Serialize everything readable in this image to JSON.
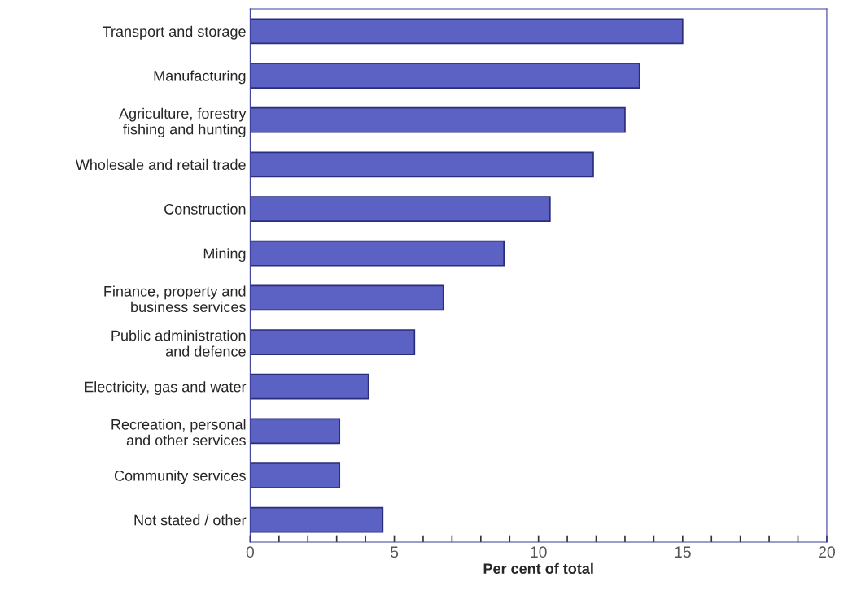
{
  "chart_data": {
    "type": "bar",
    "orientation": "horizontal",
    "xlabel": "Per cent of total",
    "categories": [
      "Transport and storage",
      "Manufacturing",
      "Agriculture, forestry\nfishing and hunting",
      "Wholesale and retail trade",
      "Construction",
      "Mining",
      "Finance, property and\nbusiness services",
      "Public administration\nand defence",
      "Electricity, gas and water",
      "Recreation, personal\nand other services",
      "Community services",
      "Not stated / other"
    ],
    "values": [
      15.0,
      13.5,
      13.0,
      11.9,
      10.4,
      8.8,
      6.7,
      5.7,
      4.1,
      3.1,
      3.1,
      4.6
    ],
    "color": "#5c62c4",
    "xlim": [
      0,
      20
    ],
    "xticks": [
      0,
      {
        "value": 1,
        "label": null
      },
      {
        "value": 2,
        "label": null
      },
      {
        "value": 3,
        "label": null
      },
      {
        "value": 4,
        "label": null
      },
      5,
      {
        "value": 6,
        "label": null
      },
      {
        "value": 7,
        "label": null
      },
      {
        "value": 8,
        "label": null
      },
      {
        "value": 9,
        "label": null
      },
      10,
      {
        "value": 11,
        "label": null
      },
      {
        "value": 12,
        "label": null
      },
      {
        "value": 13,
        "label": null
      },
      {
        "value": 14,
        "label": null
      },
      15,
      {
        "value": 16,
        "label": null
      },
      {
        "value": 17,
        "label": null
      },
      {
        "value": 18,
        "label": null
      },
      {
        "value": 19,
        "label": null
      },
      20
    ],
    "grid": false,
    "legend": false
  }
}
